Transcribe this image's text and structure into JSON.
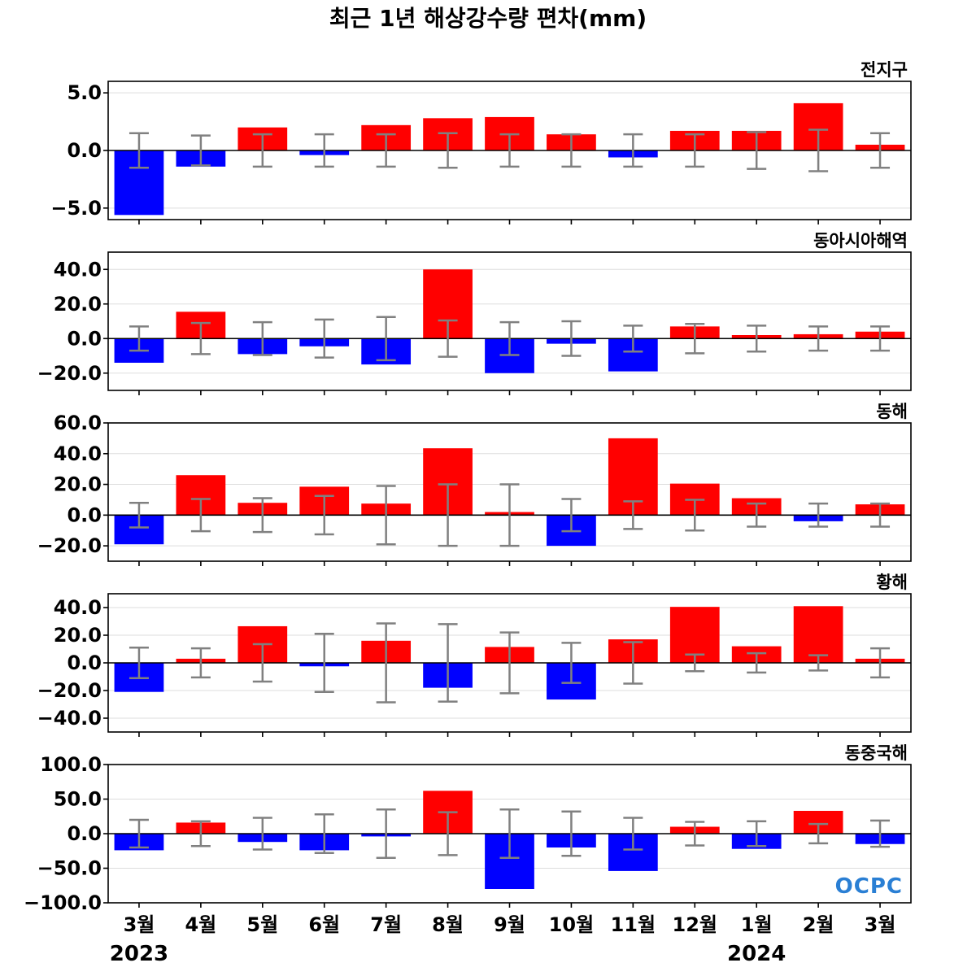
{
  "chart_data": {
    "type": "bar",
    "title": "최근 1년 해상강수량 편차(mm)",
    "categories": [
      "3월",
      "4월",
      "5월",
      "6월",
      "7월",
      "8월",
      "9월",
      "10월",
      "11월",
      "12월",
      "1월",
      "2월",
      "3월"
    ],
    "year_labels": [
      {
        "category_index": 0,
        "label": "2023"
      },
      {
        "category_index": 10,
        "label": "2024"
      }
    ],
    "colors": {
      "positive": "#ff0000",
      "negative": "#0000ff",
      "error_bar": "#808080",
      "zero_line": "#000000",
      "grid": "#dddddd"
    },
    "grid": true,
    "panels": [
      {
        "name": "전지구",
        "ylim": [
          -6,
          6
        ],
        "yticks": [
          -5,
          0,
          5
        ],
        "ytick_labels": [
          "−5.0",
          "0.0",
          "5.0"
        ],
        "values": [
          -5.6,
          -1.4,
          2.0,
          -0.4,
          2.2,
          2.8,
          2.9,
          1.4,
          -0.6,
          1.7,
          1.7,
          4.1,
          0.5
        ],
        "error_ranges": [
          [
            -1.5,
            1.5
          ],
          [
            -1.3,
            1.3
          ],
          [
            -1.4,
            1.4
          ],
          [
            -1.4,
            1.4
          ],
          [
            -1.4,
            1.4
          ],
          [
            -1.5,
            1.5
          ],
          [
            -1.4,
            1.4
          ],
          [
            -1.4,
            1.4
          ],
          [
            -1.4,
            1.4
          ],
          [
            -1.4,
            1.4
          ],
          [
            -1.6,
            1.6
          ],
          [
            -1.8,
            1.8
          ],
          [
            -1.5,
            1.5
          ]
        ]
      },
      {
        "name": "동아시아해역",
        "ylim": [
          -30,
          50
        ],
        "yticks": [
          -20,
          0,
          20,
          40
        ],
        "ytick_labels": [
          "−20.0",
          "0.0",
          "20.0",
          "40.0"
        ],
        "values": [
          -14,
          15.5,
          -9,
          -4.5,
          -15,
          40,
          -20,
          -3,
          -19,
          7,
          2,
          2.5,
          4
        ],
        "error_ranges": [
          [
            -7,
            7
          ],
          [
            -9,
            9
          ],
          [
            -9.5,
            9.5
          ],
          [
            -11,
            11
          ],
          [
            -12.5,
            12.5
          ],
          [
            -10.5,
            10.5
          ],
          [
            -9.5,
            9.5
          ],
          [
            -10,
            10
          ],
          [
            -7.5,
            7.5
          ],
          [
            -8.5,
            8.5
          ],
          [
            -7.5,
            7.5
          ],
          [
            -7,
            7
          ],
          [
            -7,
            7
          ]
        ]
      },
      {
        "name": "동해",
        "ylim": [
          -30,
          60
        ],
        "yticks": [
          -20,
          0,
          20,
          40,
          60
        ],
        "ytick_labels": [
          "−20.0",
          "0.0",
          "20.0",
          "40.0",
          "60.0"
        ],
        "values": [
          -19,
          26,
          8,
          18.5,
          7.5,
          43.5,
          2,
          -20,
          50,
          20.5,
          11,
          -4,
          7
        ],
        "error_ranges": [
          [
            -8,
            8
          ],
          [
            -10.5,
            10.5
          ],
          [
            -11,
            11
          ],
          [
            -12.5,
            12.5
          ],
          [
            -19,
            19
          ],
          [
            -20,
            20
          ],
          [
            -20,
            20
          ],
          [
            -10.5,
            10.5
          ],
          [
            -9,
            9
          ],
          [
            -10,
            10
          ],
          [
            -7.5,
            7.5
          ],
          [
            -7.5,
            7.5
          ],
          [
            -7.5,
            7.5
          ]
        ]
      },
      {
        "name": "황해",
        "ylim": [
          -50,
          50
        ],
        "yticks": [
          -40,
          -20,
          0,
          20,
          40
        ],
        "ytick_labels": [
          "−40.0",
          "−20.0",
          "0.0",
          "20.0",
          "40.0"
        ],
        "values": [
          -21,
          3,
          26.5,
          -2.5,
          16,
          -18,
          11.5,
          -26.5,
          17,
          40.5,
          12,
          41,
          3
        ],
        "error_ranges": [
          [
            -11,
            11
          ],
          [
            -10.5,
            10.5
          ],
          [
            -13.5,
            13.5
          ],
          [
            -21,
            21
          ],
          [
            -28.5,
            28.5
          ],
          [
            -28,
            28
          ],
          [
            -22,
            22
          ],
          [
            -14.5,
            14.5
          ],
          [
            -15,
            15
          ],
          [
            -6,
            6
          ],
          [
            -7,
            7
          ],
          [
            -5.5,
            5.5
          ],
          [
            -10.5,
            10.5
          ]
        ]
      },
      {
        "name": "동중국해",
        "ylim": [
          -100,
          100
        ],
        "yticks": [
          -100,
          -50,
          0,
          50,
          100
        ],
        "ytick_labels": [
          "−100.0",
          "−50.0",
          "0.0",
          "50.0",
          "100.0"
        ],
        "values": [
          -24,
          16,
          -12,
          -24,
          -4,
          62,
          -80,
          -20,
          -54,
          10,
          -22,
          33,
          -15
        ],
        "error_ranges": [
          [
            -20,
            20
          ],
          [
            -18,
            18
          ],
          [
            -23,
            23
          ],
          [
            -28,
            28
          ],
          [
            -35,
            35
          ],
          [
            -31,
            31
          ],
          [
            -35,
            35
          ],
          [
            -32,
            32
          ],
          [
            -23,
            23
          ],
          [
            -17,
            17
          ],
          [
            -18,
            18
          ],
          [
            -14,
            14
          ],
          [
            -19,
            19
          ]
        ]
      }
    ]
  },
  "logo_text": "OCPC"
}
